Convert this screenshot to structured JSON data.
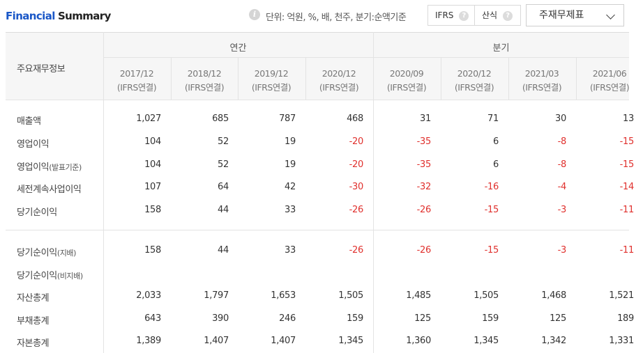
{
  "header": {
    "title_part1": "Financial",
    "title_part2": "Summary",
    "unit_text": "단위: 억원, %, 배, 천주, 분기:순액기준",
    "ifrs_label": "IFRS",
    "sansik_label": "산식",
    "help_glyph": "?",
    "info_glyph": "i",
    "dropdown_label": "주재무제표"
  },
  "table": {
    "corner_label": "주요재무정보",
    "groups": {
      "annual": "연간",
      "quarter": "분기"
    },
    "columns": [
      {
        "period": "2017/12",
        "basis": "(IFRS연결)"
      },
      {
        "period": "2018/12",
        "basis": "(IFRS연결)"
      },
      {
        "period": "2019/12",
        "basis": "(IFRS연결)"
      },
      {
        "period": "2020/12",
        "basis": "(IFRS연결)"
      },
      {
        "period": "2020/09",
        "basis": "(IFRS연결)"
      },
      {
        "period": "2020/12",
        "basis": "(IFRS연결)"
      },
      {
        "period": "2021/03",
        "basis": "(IFRS연결)"
      },
      {
        "period": "2021/06",
        "basis": "(IFRS연결)"
      }
    ],
    "rows": [
      {
        "label": "매출액",
        "label_small": "",
        "values": [
          "1,027",
          "685",
          "787",
          "468",
          "31",
          "71",
          "30",
          "13"
        ]
      },
      {
        "label": "영업이익",
        "label_small": "",
        "values": [
          "104",
          "52",
          "19",
          "-20",
          "-35",
          "6",
          "-8",
          "-15"
        ]
      },
      {
        "label": "영업이익",
        "label_small": "(발표기준)",
        "values": [
          "104",
          "52",
          "19",
          "-20",
          "-35",
          "6",
          "-8",
          "-15"
        ]
      },
      {
        "label": "세전계속사업이익",
        "label_small": "",
        "values": [
          "107",
          "64",
          "42",
          "-30",
          "-32",
          "-16",
          "-4",
          "-14"
        ]
      },
      {
        "label": "당기순이익",
        "label_small": "",
        "values": [
          "158",
          "44",
          "33",
          "-26",
          "-26",
          "-15",
          "-3",
          "-11"
        ]
      },
      {
        "label": "당기순이익",
        "label_small": "(지배)",
        "values": [
          "158",
          "44",
          "33",
          "-26",
          "-26",
          "-15",
          "-3",
          "-11"
        ]
      },
      {
        "label": "당기순이익",
        "label_small": "(비지배)",
        "values": [
          "",
          "",
          "",
          "",
          "",
          "",
          "",
          ""
        ]
      },
      {
        "label": "자산총계",
        "label_small": "",
        "values": [
          "2,033",
          "1,797",
          "1,653",
          "1,505",
          "1,485",
          "1,505",
          "1,468",
          "1,521"
        ]
      },
      {
        "label": "부채총계",
        "label_small": "",
        "values": [
          "643",
          "390",
          "246",
          "159",
          "125",
          "159",
          "125",
          "189"
        ]
      },
      {
        "label": "자본총계",
        "label_small": "",
        "values": [
          "1,389",
          "1,407",
          "1,407",
          "1,345",
          "1,360",
          "1,345",
          "1,342",
          "1,331"
        ]
      }
    ]
  },
  "colors": {
    "negative": "#e0302d",
    "title_accent": "#1a57c7"
  }
}
